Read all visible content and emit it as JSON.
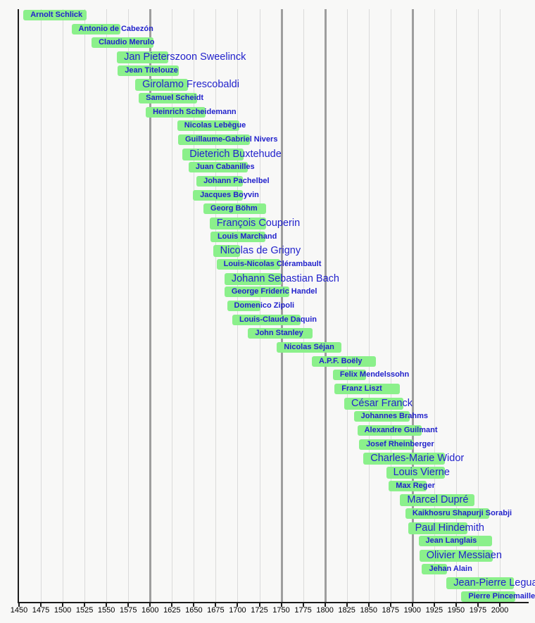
{
  "chart_data": {
    "type": "bar",
    "subtype": "horizontal-lifespan-timeline",
    "title": "",
    "xlabel": "",
    "ylabel": "",
    "grid": true,
    "legend": false,
    "x_axis": {
      "min": 1450,
      "max": 2025,
      "tick_interval": 25,
      "tick_years": [
        1450,
        1475,
        1500,
        1525,
        1550,
        1575,
        1600,
        1625,
        1650,
        1675,
        1700,
        1725,
        1750,
        1775,
        1800,
        1825,
        1850,
        1875,
        1900,
        1925,
        1950,
        1975,
        2000
      ],
      "tick_labels": [
        "1450",
        "1475",
        "1500",
        "1525",
        "1550",
        "1575",
        "1600",
        "1625",
        "1650",
        "1675",
        "1700",
        "1725",
        "1750",
        "1775",
        "1800",
        "1825",
        "1850",
        "1875",
        "1900",
        "1925",
        "1950",
        "1975",
        "2000"
      ]
    },
    "era_boundary_years": [
      1600,
      1750,
      1800,
      1900
    ],
    "composers": [
      {
        "name": "Arnolt Schlick",
        "from": 1455,
        "till": 1527,
        "major": false
      },
      {
        "name": "Antonio de Cabezón",
        "from": 1510,
        "till": 1566,
        "major": false
      },
      {
        "name": "Claudio Merulo",
        "from": 1533,
        "till": 1604,
        "major": false
      },
      {
        "name": "Jan Pieterszoon Sweelinck",
        "from": 1562,
        "till": 1621,
        "major": true
      },
      {
        "name": "Jean Titelouze",
        "from": 1563,
        "till": 1633,
        "major": false
      },
      {
        "name": "Girolamo Frescobaldi",
        "from": 1583,
        "till": 1643,
        "major": true
      },
      {
        "name": "Samuel Scheidt",
        "from": 1587,
        "till": 1654,
        "major": false
      },
      {
        "name": "Heinrich Scheidemann",
        "from": 1595,
        "till": 1663,
        "major": false
      },
      {
        "name": "Nicolas Lebègue",
        "from": 1631,
        "till": 1702,
        "major": false
      },
      {
        "name": "Guillaume-Gabriel Nivers",
        "from": 1632,
        "till": 1714,
        "major": false
      },
      {
        "name": "Dieterich Buxtehude",
        "from": 1637,
        "till": 1707,
        "major": true
      },
      {
        "name": "Juan Cabanilles",
        "from": 1644,
        "till": 1712,
        "major": false
      },
      {
        "name": "Johann Pachelbel",
        "from": 1653,
        "till": 1706,
        "major": false
      },
      {
        "name": "Jacques Boyvin",
        "from": 1649,
        "till": 1706,
        "major": false
      },
      {
        "name": "Georg Böhm",
        "from": 1661,
        "till": 1733,
        "major": false
      },
      {
        "name": "François Couperin",
        "from": 1668,
        "till": 1733,
        "major": true
      },
      {
        "name": "Louis Marchand",
        "from": 1669,
        "till": 1732,
        "major": false
      },
      {
        "name": "Nicolas de Grigny",
        "from": 1672,
        "till": 1703,
        "major": true
      },
      {
        "name": "Louis-Nicolas Clérambault",
        "from": 1676,
        "till": 1749,
        "major": false
      },
      {
        "name": "Johann Sebastian Bach",
        "from": 1685,
        "till": 1750,
        "major": true
      },
      {
        "name": "George Frideric Handel",
        "from": 1685,
        "till": 1759,
        "major": false
      },
      {
        "name": "Domenico Zipoli",
        "from": 1688,
        "till": 1726,
        "major": false
      },
      {
        "name": "Louis-Claude Daquin",
        "from": 1694,
        "till": 1772,
        "major": false
      },
      {
        "name": "John Stanley",
        "from": 1712,
        "till": 1786,
        "major": false
      },
      {
        "name": "Nicolas Séjan",
        "from": 1745,
        "till": 1819,
        "major": false
      },
      {
        "name": "A.P.F. Boëly",
        "from": 1785,
        "till": 1858,
        "major": false
      },
      {
        "name": "Felix Mendelssohn",
        "from": 1809,
        "till": 1847,
        "major": false
      },
      {
        "name": "Franz Liszt",
        "from": 1811,
        "till": 1886,
        "major": false
      },
      {
        "name": "César Franck",
        "from": 1822,
        "till": 1890,
        "major": true
      },
      {
        "name": "Johannes Brahms",
        "from": 1833,
        "till": 1897,
        "major": false
      },
      {
        "name": "Alexandre Guilmant",
        "from": 1837,
        "till": 1911,
        "major": false
      },
      {
        "name": "Josef Rheinberger",
        "from": 1839,
        "till": 1901,
        "major": false
      },
      {
        "name": "Charles-Marie Widor",
        "from": 1844,
        "till": 1937,
        "major": true
      },
      {
        "name": "Louis Vierne",
        "from": 1870,
        "till": 1937,
        "major": true
      },
      {
        "name": "Max Reger",
        "from": 1873,
        "till": 1916,
        "major": false
      },
      {
        "name": "Marcel Dupré",
        "from": 1886,
        "till": 1971,
        "major": true
      },
      {
        "name": "Kaikhosru Shapurji Sorabji",
        "from": 1892,
        "till": 1988,
        "major": false
      },
      {
        "name": "Paul Hindemith",
        "from": 1895,
        "till": 1963,
        "major": true
      },
      {
        "name": "Jean Langlais",
        "from": 1907,
        "till": 1991,
        "major": false
      },
      {
        "name": "Olivier Messiaen",
        "from": 1908,
        "till": 1992,
        "major": true
      },
      {
        "name": "Jehan Alain",
        "from": 1911,
        "till": 1940,
        "major": false
      },
      {
        "name": "Jean-Pierre Leguay",
        "from": 1939,
        "till": 2016,
        "major": true
      },
      {
        "name": "Pierre Pincemaille",
        "from": 1956,
        "till": 2018,
        "major": false
      }
    ],
    "colors": {
      "background": "#f8f8f7",
      "bar_fill": "#8bf08b",
      "bar_text": "#2222cc",
      "gridline": "#dadada",
      "era_line": "#9e9e9e",
      "axis": "#1c1c1c",
      "tick_label": "#000000"
    }
  }
}
